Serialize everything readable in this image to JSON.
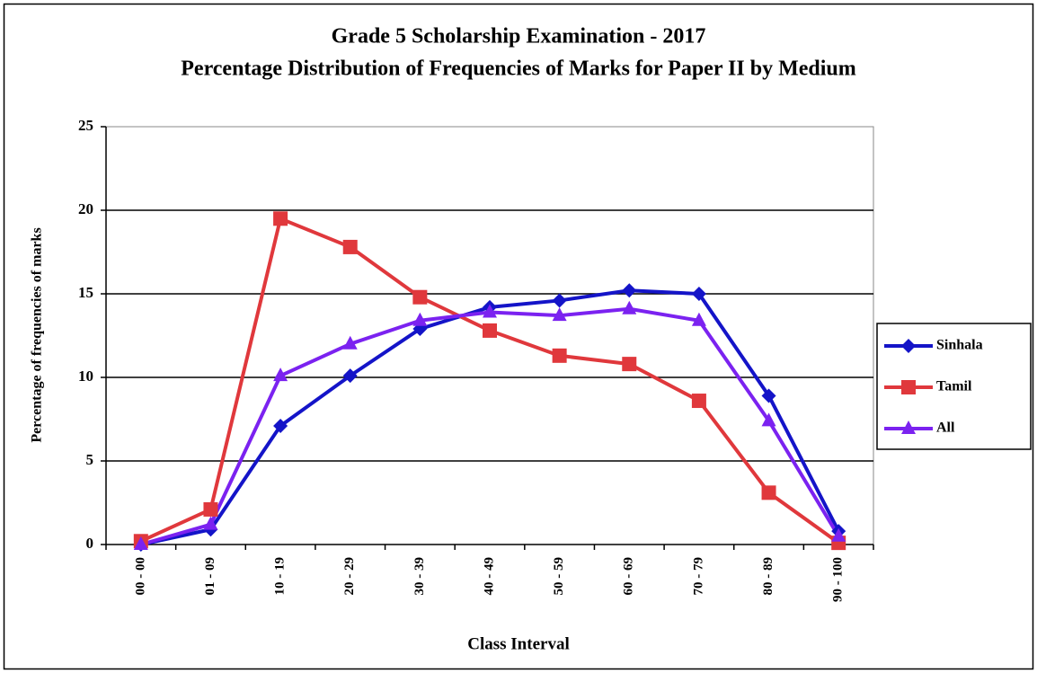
{
  "chart_data": {
    "type": "line",
    "title": "Grade 5 Scholarship Examination - 2017",
    "subtitle": "Percentage Distribution of Frequencies of Marks for Paper II by Medium",
    "x_label": "Class Interval",
    "y_label": "Percentage of frequencies of marks",
    "categories": [
      "00 - 00",
      "01 - 09",
      "10 - 19",
      "20 - 29",
      "30 - 39",
      "40 - 49",
      "50 - 59",
      "60 - 69",
      "70 - 79",
      "80 - 89",
      "90 - 100"
    ],
    "series": [
      {
        "name": "Sinhala",
        "color": "#1414c8",
        "marker": "diamond",
        "values": [
          0,
          0.9,
          7.1,
          10.1,
          12.9,
          14.2,
          14.6,
          15.2,
          15.0,
          8.9,
          0.8
        ]
      },
      {
        "name": "Tamil",
        "color": "#e0383c",
        "marker": "square",
        "values": [
          0.2,
          2.1,
          19.5,
          17.8,
          14.8,
          12.8,
          11.3,
          10.8,
          8.6,
          3.1,
          0.1
        ]
      },
      {
        "name": "All",
        "color": "#7b22f0",
        "marker": "triangle",
        "values": [
          0,
          1.2,
          10.1,
          12.0,
          13.4,
          13.9,
          13.7,
          14.1,
          13.4,
          7.4,
          0.5
        ]
      }
    ],
    "ylim": [
      0,
      25
    ],
    "yticks": [
      0,
      5,
      10,
      15,
      20,
      25
    ],
    "grid": true,
    "legend": "right"
  }
}
